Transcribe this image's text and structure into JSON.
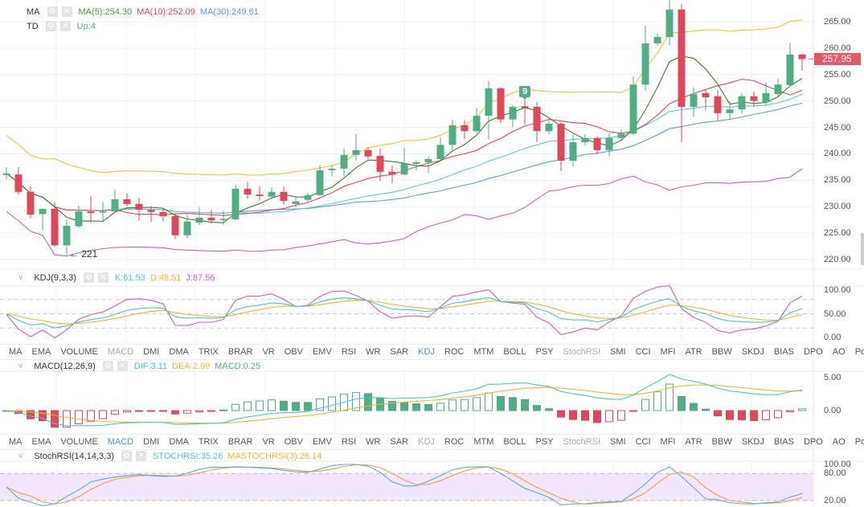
{
  "colors": {
    "up": "#4fae83",
    "down": "#e0475a",
    "ma5": "#3f7b24",
    "ma10": "#d9485a",
    "ma20": "#5cc9cf",
    "ma30": "#5a9ed4",
    "boll_up": "#f1c232",
    "boll_dn": "#cf5fc4",
    "k": "#4cc6c0",
    "d": "#f0b429",
    "j": "#cc5fc0",
    "dif": "#4cc6c0",
    "dea": "#f0b429",
    "srsi": "#5aaed4",
    "masrsi": "#f0a040",
    "grid": "#f0f0f0",
    "band": "#f1e6fb",
    "tag": "#e25a66",
    "active_tab": "#4a90d9"
  },
  "main_legend": {
    "ma": {
      "name": "MA",
      "values": [
        {
          "text": "MA(5):254.30",
          "color": "#4a9a3a"
        },
        {
          "text": "MA(10):252.09",
          "color": "#e0475a"
        },
        {
          "text": "MA(30):249.61",
          "color": "#4aa3d4"
        }
      ]
    },
    "td": {
      "name": "TD",
      "values": [
        {
          "text": "Up:4",
          "color": "#4fae83"
        }
      ]
    }
  },
  "last_price": "257.95",
  "low_annotation": "← 221",
  "td_marker": "9",
  "price_axis": [
    "265.00",
    "260.00",
    "255.00",
    "250.00",
    "245.00",
    "240.00",
    "235.00",
    "230.00",
    "225.00",
    "220.00"
  ],
  "kdj": {
    "name": "KDJ(9,3,3)",
    "values": [
      {
        "text": "K:61.53",
        "color": "#4cc6c0"
      },
      {
        "text": "D:48.51",
        "color": "#f0b429"
      },
      {
        "text": "J:87.56",
        "color": "#cc5fc0"
      }
    ],
    "axis": [
      "100.00",
      "50.00",
      "0.00"
    ]
  },
  "macd": {
    "name": "MACD(12,26,9)",
    "values": [
      {
        "text": "DIF:3.11",
        "color": "#4cc6c0"
      },
      {
        "text": "DEA:2.99",
        "color": "#f0b429"
      },
      {
        "text": "MACD:0.25",
        "color": "#4fae83"
      }
    ],
    "axis": [
      "5.00",
      "0.00"
    ]
  },
  "stochrsi": {
    "name": "StochRSI(14,14,3,3)",
    "values": [
      {
        "text": "STOCHRSI:35.26",
        "color": "#4cc6c0"
      },
      {
        "text": "MASTOCHRSI(3):26.14",
        "color": "#f0b429"
      }
    ],
    "axis": [
      "100.00",
      "80.00",
      "20.00"
    ]
  },
  "tabs_row1": {
    "items": [
      "MA",
      "EMA",
      "VOLUME",
      "MACD",
      "DMI",
      "DMA",
      "TRIX",
      "BRAR",
      "VR",
      "OBV",
      "EMV",
      "RSI",
      "WR",
      "SAR",
      "KDJ",
      "ROC",
      "MTM",
      "BOLL",
      "PSY",
      "StochRSI",
      "SMI",
      "CCI",
      "MFI",
      "ATR",
      "BBW",
      "SKDJ",
      "BIAS",
      "DPO",
      "AO",
      "Position"
    ],
    "active": "KDJ",
    "muted": [
      "MACD",
      "StochRSI"
    ]
  },
  "tabs_row2": {
    "items": [
      "MA",
      "EMA",
      "VOLUME",
      "MACD",
      "DMI",
      "DMA",
      "TRIX",
      "BRAR",
      "VR",
      "OBV",
      "EMV",
      "RSI",
      "WR",
      "SAR",
      "KDJ",
      "ROC",
      "MTM",
      "BOLL",
      "PSY",
      "StochRSI",
      "SMI",
      "CCI",
      "MFI",
      "ATR",
      "BBW",
      "SKDJ",
      "BIAS",
      "DPO",
      "AO",
      "Position"
    ],
    "active": "MACD",
    "muted": [
      "KDJ",
      "StochRSI"
    ]
  },
  "chart_data": {
    "type": "candlestick",
    "price_range": [
      220,
      265
    ],
    "ohlc": [
      [
        236.0,
        237.5,
        235.2,
        236.3
      ],
      [
        236.1,
        237.5,
        232.3,
        232.8
      ],
      [
        232.8,
        233.9,
        227.8,
        228.5
      ],
      [
        228.6,
        229.7,
        225.5,
        229.6
      ],
      [
        229.6,
        230.9,
        222.4,
        222.7
      ],
      [
        222.7,
        227.6,
        220.9,
        226.4
      ],
      [
        226.3,
        230.2,
        226.0,
        229.1
      ],
      [
        229.1,
        232.0,
        226.9,
        228.8
      ],
      [
        228.9,
        230.9,
        227.4,
        229.1
      ],
      [
        229.1,
        233.2,
        229.0,
        231.4
      ],
      [
        231.4,
        232.5,
        230.1,
        230.5
      ],
      [
        230.5,
        231.7,
        227.4,
        229.4
      ],
      [
        229.4,
        230.1,
        227.1,
        229.0
      ],
      [
        229.0,
        229.6,
        227.2,
        228.2
      ],
      [
        228.2,
        228.7,
        223.9,
        224.6
      ],
      [
        224.6,
        228.5,
        224.0,
        227.2
      ],
      [
        227.0,
        229.9,
        226.5,
        227.9
      ],
      [
        227.9,
        229.4,
        226.8,
        227.4
      ],
      [
        227.5,
        229.2,
        226.6,
        227.7
      ],
      [
        227.6,
        234.2,
        227.4,
        233.4
      ],
      [
        233.4,
        234.7,
        231.5,
        232.3
      ],
      [
        232.3,
        233.9,
        231.2,
        232.0
      ],
      [
        231.9,
        233.6,
        231.4,
        232.8
      ],
      [
        232.8,
        233.8,
        230.4,
        231.1
      ],
      [
        230.5,
        232.0,
        229.9,
        231.0
      ],
      [
        231.3,
        232.6,
        230.9,
        232.2
      ],
      [
        232.2,
        237.9,
        232.0,
        236.9
      ],
      [
        236.9,
        237.9,
        235.8,
        237.2
      ],
      [
        237.2,
        241.0,
        235.8,
        239.8
      ],
      [
        239.8,
        243.8,
        238.7,
        240.7
      ],
      [
        240.7,
        241.3,
        239.0,
        239.5
      ],
      [
        239.6,
        241.0,
        234.9,
        236.6
      ],
      [
        236.6,
        237.8,
        234.4,
        236.1
      ],
      [
        236.1,
        241.1,
        235.9,
        238.2
      ],
      [
        238.1,
        238.8,
        236.9,
        238.4
      ],
      [
        238.4,
        239.5,
        236.4,
        239.0
      ],
      [
        239.0,
        243.2,
        238.8,
        241.7
      ],
      [
        241.7,
        246.4,
        240.7,
        245.4
      ],
      [
        245.4,
        246.4,
        242.8,
        244.3
      ],
      [
        244.3,
        248.7,
        244.0,
        247.2
      ],
      [
        247.2,
        253.8,
        242.8,
        252.4
      ],
      [
        252.4,
        252.6,
        245.8,
        246.5
      ],
      [
        246.5,
        249.2,
        245.0,
        248.9
      ],
      [
        249.0,
        250.2,
        245.5,
        248.7
      ],
      [
        248.9,
        249.8,
        242.2,
        244.3
      ],
      [
        244.3,
        246.4,
        243.6,
        245.7
      ],
      [
        245.7,
        246.0,
        236.7,
        238.7
      ],
      [
        238.7,
        243.6,
        237.6,
        242.2
      ],
      [
        242.2,
        243.8,
        241.6,
        243.0
      ],
      [
        243.0,
        243.3,
        239.9,
        240.7
      ],
      [
        240.7,
        243.9,
        239.5,
        243.0
      ],
      [
        243.0,
        244.6,
        242.7,
        243.8
      ],
      [
        243.8,
        254.7,
        243.5,
        253.1
      ],
      [
        253.1,
        264.2,
        251.9,
        260.9
      ],
      [
        260.9,
        262.8,
        260.5,
        262.1
      ],
      [
        262.1,
        269.5,
        260.5,
        267.3
      ],
      [
        267.3,
        268.3,
        242.2,
        248.9
      ],
      [
        248.9,
        252.6,
        247.0,
        251.3
      ],
      [
        251.5,
        252.1,
        248.3,
        250.7
      ],
      [
        250.9,
        252.1,
        246.3,
        247.7
      ],
      [
        247.7,
        249.9,
        246.4,
        248.4
      ],
      [
        248.4,
        251.5,
        247.6,
        250.9
      ],
      [
        250.9,
        251.8,
        248.9,
        250.0
      ],
      [
        249.8,
        253.6,
        249.2,
        251.5
      ],
      [
        251.3,
        254.2,
        250.8,
        253.1
      ],
      [
        253.0,
        261.0,
        252.8,
        258.8
      ],
      [
        258.8,
        258.9,
        255.7,
        257.95
      ]
    ]
  }
}
